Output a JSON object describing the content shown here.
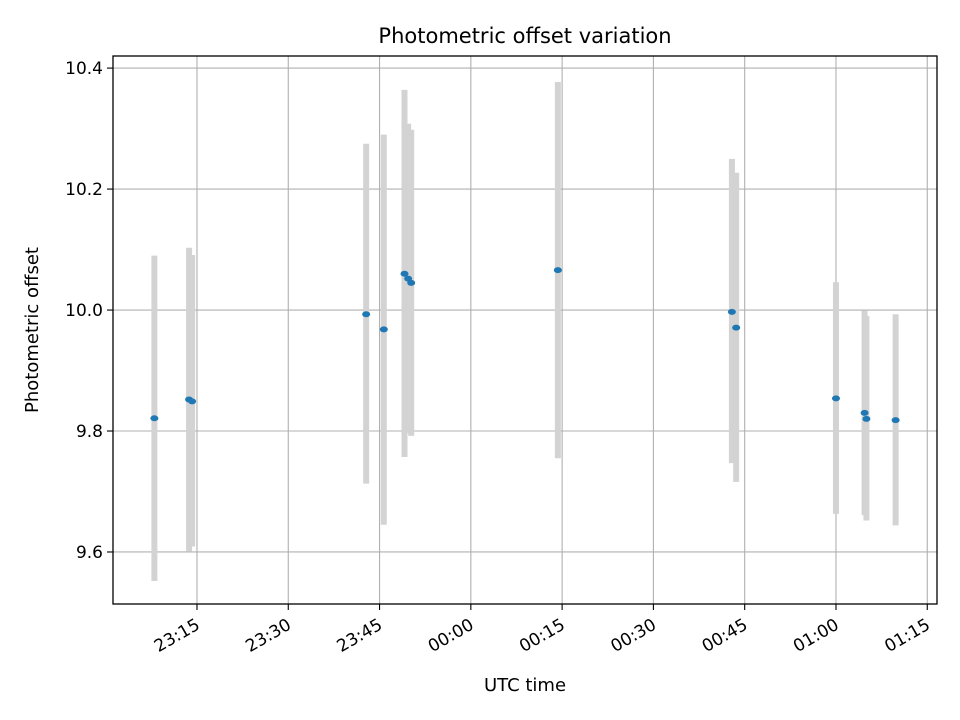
{
  "chart_data": {
    "type": "scatter",
    "title": "Photometric offset variation",
    "xlabel": "UTC time",
    "ylabel": "Photometric offset",
    "x_axis": {
      "unit": "minutes after 23:00 UTC",
      "range": [
        -0.6,
        134.8
      ],
      "ticks": [
        {
          "value": 13.2,
          "label": "23:15"
        },
        {
          "value": 28.2,
          "label": "23:30"
        },
        {
          "value": 43.2,
          "label": "23:45"
        },
        {
          "value": 58.2,
          "label": "00:00"
        },
        {
          "value": 73.2,
          "label": "00:15"
        },
        {
          "value": 88.2,
          "label": "00:30"
        },
        {
          "value": 103.2,
          "label": "00:45"
        },
        {
          "value": 118.2,
          "label": "01:00"
        },
        {
          "value": 133.2,
          "label": "01:15"
        }
      ],
      "tick_label_rotation": 30
    },
    "y_axis": {
      "range": [
        9.514,
        10.42
      ],
      "ticks": [
        9.6,
        9.8,
        10.0,
        10.2,
        10.4
      ],
      "tick_labels": [
        "9.6",
        "9.8",
        "10.0",
        "10.2",
        "10.4"
      ]
    },
    "grid": true,
    "marker_color": "#1f77b4",
    "errorbar_color": "#d3d3d3",
    "series": [
      {
        "points": [
          {
            "x": 6.2,
            "y": 9.821,
            "ylow": 9.552,
            "yhigh": 10.09
          },
          {
            "x": 11.9,
            "y": 9.852,
            "ylow": 9.601,
            "yhigh": 10.103
          },
          {
            "x": 12.4,
            "y": 9.849,
            "ylow": 9.609,
            "yhigh": 10.091
          },
          {
            "x": 41.0,
            "y": 9.993,
            "ylow": 9.713,
            "yhigh": 10.275
          },
          {
            "x": 43.9,
            "y": 9.968,
            "ylow": 9.645,
            "yhigh": 10.29
          },
          {
            "x": 47.3,
            "y": 10.06,
            "ylow": 9.757,
            "yhigh": 10.364
          },
          {
            "x": 47.9,
            "y": 10.052,
            "ylow": 9.797,
            "yhigh": 10.308
          },
          {
            "x": 48.4,
            "y": 10.045,
            "ylow": 9.792,
            "yhigh": 10.298
          },
          {
            "x": 72.5,
            "y": 10.066,
            "ylow": 9.755,
            "yhigh": 10.377
          },
          {
            "x": 101.1,
            "y": 9.997,
            "ylow": 9.747,
            "yhigh": 10.25
          },
          {
            "x": 101.8,
            "y": 9.971,
            "ylow": 9.716,
            "yhigh": 10.227
          },
          {
            "x": 118.2,
            "y": 9.854,
            "ylow": 9.663,
            "yhigh": 10.046
          },
          {
            "x": 122.9,
            "y": 9.83,
            "ylow": 9.661,
            "yhigh": 9.999
          },
          {
            "x": 123.2,
            "y": 9.82,
            "ylow": 9.652,
            "yhigh": 9.99
          },
          {
            "x": 128.0,
            "y": 9.818,
            "ylow": 9.644,
            "yhigh": 9.993
          }
        ]
      }
    ]
  }
}
